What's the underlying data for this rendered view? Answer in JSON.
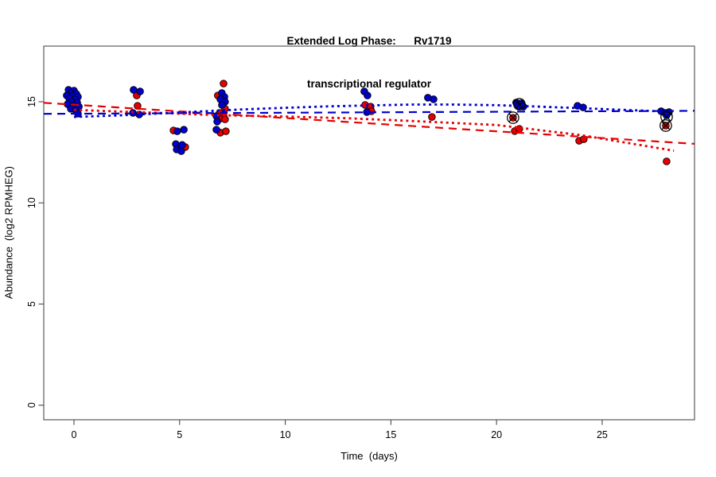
{
  "title": {
    "line1": "Extended Log Phase:      Rv1719",
    "line2": "transcriptional regulator"
  },
  "chart_data": {
    "type": "scatter",
    "title": "Extended Log Phase: Rv1719 transcriptional regulator",
    "xlabel": "Time  (days)",
    "ylabel": "Abundance  (log2 RPMHEG)",
    "x_ticks": [
      0,
      5,
      10,
      15,
      20,
      25
    ],
    "y_ticks": [
      0,
      5,
      10,
      15
    ],
    "xlim": [
      -1.43,
      29.37
    ],
    "ylim": [
      -0.72,
      17.75
    ],
    "grid": false,
    "legend": "none",
    "series": [
      {
        "name": "red",
        "color": "#e60000",
        "points": [
          [
            -0.23,
            14.92
          ],
          [
            0.08,
            14.84
          ],
          [
            2.97,
            15.31
          ],
          [
            3.01,
            14.8
          ],
          [
            4.71,
            13.58
          ],
          [
            5.27,
            12.76
          ],
          [
            7.08,
            15.9
          ],
          [
            6.81,
            15.31
          ],
          [
            7.15,
            14.65
          ],
          [
            6.89,
            14.45
          ],
          [
            7.08,
            14.33
          ],
          [
            6.93,
            14.17
          ],
          [
            7.15,
            14.13
          ],
          [
            6.93,
            13.47
          ],
          [
            7.19,
            13.54
          ],
          [
            13.78,
            14.84
          ],
          [
            14.04,
            14.76
          ],
          [
            14.08,
            14.53
          ],
          [
            16.94,
            14.25
          ],
          [
            20.86,
            13.55
          ],
          [
            21.08,
            13.66
          ],
          [
            20.78,
            14.21
          ],
          [
            23.91,
            13.07
          ],
          [
            24.13,
            13.15
          ],
          [
            28.01,
            13.82
          ],
          [
            28.05,
            12.05
          ]
        ]
      },
      {
        "name": "blue",
        "color": "#0000cd",
        "points": [
          [
            -0.26,
            15.59
          ],
          [
            0.0,
            15.55
          ],
          [
            -0.15,
            15.43
          ],
          [
            0.11,
            15.39
          ],
          [
            -0.34,
            15.31
          ],
          [
            -0.08,
            15.28
          ],
          [
            0.19,
            15.24
          ],
          [
            -0.23,
            15.16
          ],
          [
            0.04,
            15.12
          ],
          [
            -0.11,
            15.0
          ],
          [
            0.15,
            14.96
          ],
          [
            -0.3,
            14.88
          ],
          [
            -0.04,
            14.8
          ],
          [
            0.23,
            14.76
          ],
          [
            -0.15,
            14.65
          ],
          [
            0.08,
            14.57
          ],
          [
            0.19,
            14.41
          ],
          [
            2.82,
            15.59
          ],
          [
            3.13,
            15.51
          ],
          [
            2.79,
            14.45
          ],
          [
            3.09,
            14.37
          ],
          [
            4.89,
            13.54
          ],
          [
            5.2,
            13.62
          ],
          [
            4.82,
            12.91
          ],
          [
            5.12,
            12.87
          ],
          [
            4.86,
            12.64
          ],
          [
            5.08,
            12.56
          ],
          [
            7.0,
            15.43
          ],
          [
            7.12,
            15.24
          ],
          [
            6.93,
            15.12
          ],
          [
            7.15,
            15.0
          ],
          [
            7.0,
            14.84
          ],
          [
            6.74,
            14.29
          ],
          [
            6.78,
            14.02
          ],
          [
            6.74,
            13.62
          ],
          [
            13.74,
            15.51
          ],
          [
            13.89,
            15.31
          ],
          [
            13.86,
            14.49
          ],
          [
            16.75,
            15.2
          ],
          [
            17.02,
            15.12
          ],
          [
            20.93,
            14.96
          ],
          [
            21.16,
            14.92
          ],
          [
            21.05,
            14.8
          ],
          [
            21.27,
            14.76
          ],
          [
            23.83,
            14.8
          ],
          [
            24.1,
            14.72
          ],
          [
            27.79,
            14.53
          ],
          [
            27.97,
            14.45
          ],
          [
            28.16,
            14.49
          ],
          [
            28.05,
            14.33
          ]
        ]
      }
    ],
    "outlier_markers": {
      "symbol": "circle-x",
      "color": "#000000",
      "points": [
        [
          21.08,
          14.88
        ],
        [
          20.78,
          14.21
        ],
        [
          28.05,
          14.25
        ],
        [
          28.01,
          13.82
        ]
      ]
    },
    "trend_lines": [
      {
        "name": "red-linear",
        "color": "#e60000",
        "style": "dashed",
        "points": [
          [
            -1.43,
            14.95
          ],
          [
            29.37,
            12.92
          ]
        ]
      },
      {
        "name": "blue-linear",
        "color": "#0000cd",
        "style": "dashed",
        "points": [
          [
            -1.43,
            14.4
          ],
          [
            29.37,
            14.55
          ]
        ]
      },
      {
        "name": "red-smooth",
        "color": "#e60000",
        "style": "dotted",
        "points": [
          [
            0,
            14.6
          ],
          [
            4,
            14.45
          ],
          [
            7,
            14.33
          ],
          [
            10,
            14.27
          ],
          [
            13,
            14.18
          ],
          [
            16,
            14.05
          ],
          [
            18,
            13.95
          ],
          [
            20,
            13.85
          ],
          [
            22,
            13.6
          ],
          [
            24,
            13.35
          ],
          [
            26,
            13.0
          ],
          [
            28.4,
            12.58
          ]
        ]
      },
      {
        "name": "blue-smooth",
        "color": "#0000cd",
        "style": "dotted",
        "points": [
          [
            0,
            14.25
          ],
          [
            2,
            14.32
          ],
          [
            4,
            14.42
          ],
          [
            6,
            14.52
          ],
          [
            8,
            14.62
          ],
          [
            10,
            14.7
          ],
          [
            12,
            14.77
          ],
          [
            14,
            14.82
          ],
          [
            16,
            14.86
          ],
          [
            18,
            14.86
          ],
          [
            20,
            14.83
          ],
          [
            22,
            14.76
          ],
          [
            24,
            14.68
          ],
          [
            26,
            14.6
          ],
          [
            28.4,
            14.5
          ]
        ]
      }
    ]
  }
}
